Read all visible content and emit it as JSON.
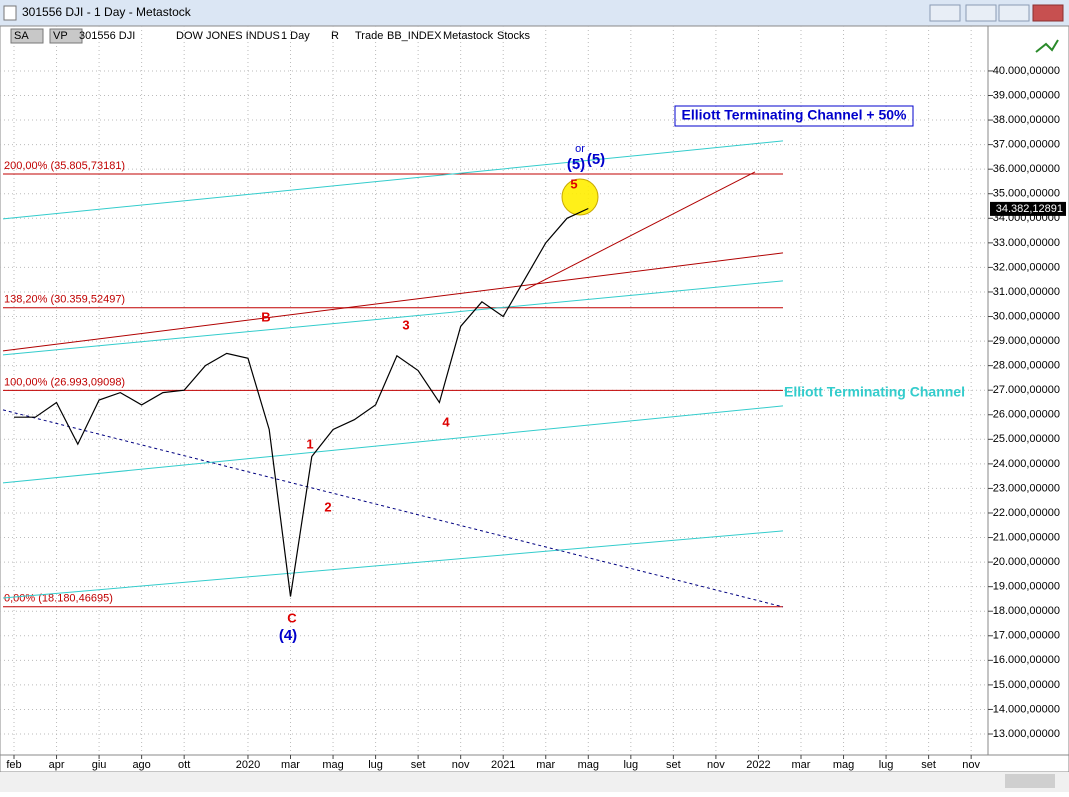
{
  "window": {
    "title": "301556 DJI - 1 Day - Metastock"
  },
  "toolbar": [
    "SA",
    "VP",
    "301556 DJI",
    "DOW JONES INDUS",
    "1 Day",
    "R",
    "Trade",
    "BB_INDEX",
    "Metastock",
    "Stocks"
  ],
  "chart_data": {
    "type": "line",
    "categories": [
      "feb",
      null,
      "apr",
      null,
      "giu",
      null,
      "ago",
      null,
      "ott",
      null,
      null,
      "2020",
      null,
      "mar",
      null,
      "mag",
      null,
      "lug",
      null,
      "set",
      null,
      "nov",
      null,
      "2021",
      null,
      "mar",
      null,
      "mag",
      null,
      "lug",
      null,
      "set",
      null,
      "nov",
      null,
      "2022",
      null,
      "mar",
      null,
      "mag",
      null,
      "lug",
      null,
      "set",
      null,
      "nov"
    ],
    "series": [
      {
        "color": "#000000",
        "values": [
          25900,
          25900,
          26500,
          24800,
          26600,
          26900,
          26400,
          26900,
          27000,
          28000,
          28500,
          28300,
          25400,
          18600,
          24300,
          25400,
          25800,
          26400,
          28400,
          27800,
          26500,
          29600,
          30600,
          30000,
          31500,
          33000,
          34000,
          34400,
          null,
          null,
          null,
          null,
          null,
          null,
          null,
          null,
          null,
          null,
          null,
          null,
          null,
          null,
          null,
          null,
          null,
          null
        ]
      }
    ],
    "ylim": [
      12145,
      41830
    ],
    "yticks": [
      {
        "value": 13000,
        "label": "13.000,00000"
      },
      {
        "value": 14000,
        "label": "14.000,00000"
      },
      {
        "value": 15000,
        "label": "15.000,00000"
      },
      {
        "value": 16000,
        "label": "16.000,00000"
      },
      {
        "value": 17000,
        "label": "17.000,00000"
      },
      {
        "value": 18000,
        "label": "18.000,00000"
      },
      {
        "value": 19000,
        "label": "19.000,00000"
      },
      {
        "value": 20000,
        "label": "20.000,00000"
      },
      {
        "value": 21000,
        "label": "21.000,00000"
      },
      {
        "value": 22000,
        "label": "22.000,00000"
      },
      {
        "value": 23000,
        "label": "23.000,00000"
      },
      {
        "value": 24000,
        "label": "24.000,00000"
      },
      {
        "value": 25000,
        "label": "25.000,00000"
      },
      {
        "value": 26000,
        "label": "26.000,00000"
      },
      {
        "value": 27000,
        "label": "27.000,00000"
      },
      {
        "value": 28000,
        "label": "28.000,00000"
      },
      {
        "value": 29000,
        "label": "29.000,00000"
      },
      {
        "value": 30000,
        "label": "30.000,00000"
      },
      {
        "value": 31000,
        "label": "31.000,00000"
      },
      {
        "value": 32000,
        "label": "32.000,00000"
      },
      {
        "value": 33000,
        "label": "33.000,00000"
      },
      {
        "value": 34000,
        "label": "34.000,00000"
      },
      {
        "value": 35000,
        "label": "35.000,00000"
      },
      {
        "value": 36000,
        "label": "36.000,00000"
      },
      {
        "value": 37000,
        "label": "37.000,00000"
      },
      {
        "value": 38000,
        "label": "38.000,00000"
      },
      {
        "value": 39000,
        "label": "39.000,00000"
      },
      {
        "value": 40000,
        "label": "40.000,00000"
      }
    ],
    "grid": true,
    "levels": [
      {
        "label": "200,00% (35.805,73181)",
        "value": 35805.73181,
        "color": "#c00000"
      },
      {
        "label": "138,20% (30.359,52497)",
        "value": 30359.52497,
        "color": "#c00000"
      },
      {
        "label": "100,00% (26.993,09098)",
        "value": 26993.09098,
        "color": "#c00000"
      },
      {
        "label": "0,00% (18.180,46695)",
        "value": 18180.46695,
        "color": "#c00000"
      }
    ],
    "lines": [
      {
        "color": "#33cccc",
        "values": [
          33974,
          37150
        ]
      },
      {
        "color": "#33cccc",
        "values": [
          28437,
          31450
        ]
      },
      {
        "color": "#33cccc",
        "values": [
          23225,
          26360
        ]
      },
      {
        "color": "#33cccc",
        "values": [
          18540,
          21270
        ]
      },
      {
        "color": "#b00000",
        "values": [
          28600,
          32590
        ]
      },
      {
        "color": "#b00000",
        "values": [
          31083,
          35888
        ]
      },
      {
        "color": "#000080",
        "values": [
          26197,
          18176
        ]
      }
    ],
    "annotations": [
      "Elliott Terminating Channel + 50%",
      "Elliott Terminating Channel"
    ],
    "waves": [
      {
        "text": "B",
        "color": "#dd0000"
      },
      {
        "text": "C",
        "color": "#dd0000"
      },
      {
        "text": "(4)",
        "color": "#0000cc"
      },
      {
        "text": "1",
        "color": "#dd0000"
      },
      {
        "text": "2",
        "color": "#dd0000"
      },
      {
        "text": "3",
        "color": "#dd0000"
      },
      {
        "text": "4",
        "color": "#dd0000"
      },
      {
        "text": "5",
        "color": "#dd0000"
      },
      {
        "text": "(5)",
        "color": "#0000cc"
      },
      {
        "text": "or",
        "color": "#0000cc"
      },
      {
        "text": "(5)",
        "color": "#0000cc"
      }
    ],
    "last_price": {
      "value": 34382.12891,
      "label": "34.382,12891"
    }
  }
}
